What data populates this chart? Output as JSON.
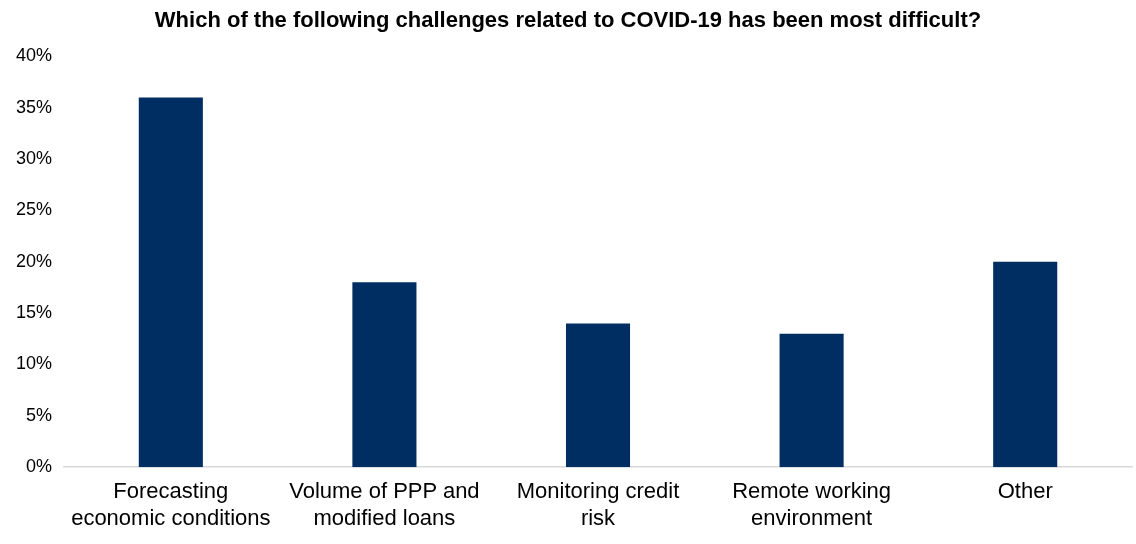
{
  "chart_data": {
    "type": "bar",
    "title": "Which of the following challenges related to COVID-19 has been most difficult?",
    "categories": [
      "Forecasting economic conditions",
      "Volume of PPP and modified loans",
      "Monitoring credit risk",
      "Remote working environment",
      "Other"
    ],
    "values": [
      36,
      18,
      14,
      13,
      20
    ],
    "color": "#002d62",
    "ylim": [
      0,
      40
    ],
    "yticks": [
      {
        "value": 0,
        "label": "0%"
      },
      {
        "value": 5,
        "label": "5%"
      },
      {
        "value": 10,
        "label": "10%"
      },
      {
        "value": 15,
        "label": "15%"
      },
      {
        "value": 20,
        "label": "20%"
      },
      {
        "value": 25,
        "label": "25%"
      },
      {
        "value": 30,
        "label": "30%"
      },
      {
        "value": 35,
        "label": "35%"
      },
      {
        "value": 40,
        "label": "40%"
      }
    ],
    "grid": false,
    "legend": false
  }
}
